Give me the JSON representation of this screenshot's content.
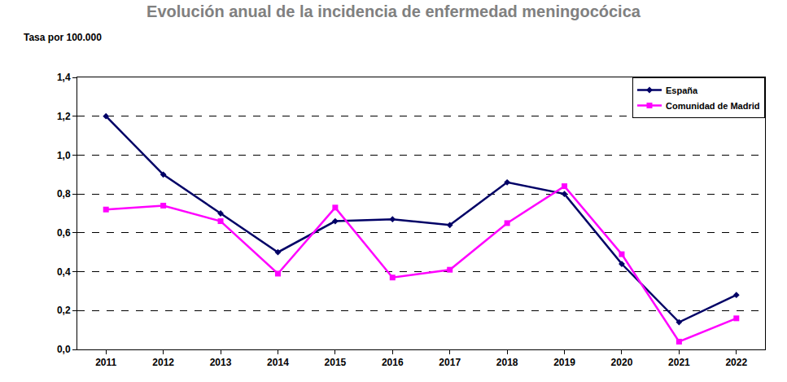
{
  "chart_data": {
    "type": "line",
    "title": "Evolución anual de la incidencia de enfermedad meningocócica",
    "y_label": "Tasa por 100.000",
    "categories": [
      "2011",
      "2012",
      "2013",
      "2014",
      "2015",
      "2016",
      "2017",
      "2018",
      "2019",
      "2020",
      "2021",
      "2022"
    ],
    "series": [
      {
        "name": "España",
        "color": "#000066",
        "marker": "diamond",
        "values": [
          1.2,
          0.9,
          0.7,
          0.5,
          0.66,
          0.67,
          0.64,
          0.86,
          0.8,
          0.44,
          0.14,
          0.28
        ]
      },
      {
        "name": "Comunidad de Madrid",
        "color": "#ff00ff",
        "marker": "square",
        "values": [
          0.72,
          0.74,
          0.66,
          0.39,
          0.73,
          0.37,
          0.41,
          0.65,
          0.84,
          0.49,
          0.04,
          0.16
        ]
      }
    ],
    "ylim": [
      0,
      1.4
    ],
    "yticks": [
      {
        "value": 0,
        "label": "0,0"
      },
      {
        "value": 0.2,
        "label": "0,2"
      },
      {
        "value": 0.4,
        "label": "0,4"
      },
      {
        "value": 0.6,
        "label": "0,6"
      },
      {
        "value": 0.8,
        "label": "0,8"
      },
      {
        "value": 1.0,
        "label": "1,0"
      },
      {
        "value": 1.2,
        "label": "1,2"
      },
      {
        "value": 1.4,
        "label": "1,4"
      }
    ],
    "grid": true,
    "legend": "top right"
  }
}
